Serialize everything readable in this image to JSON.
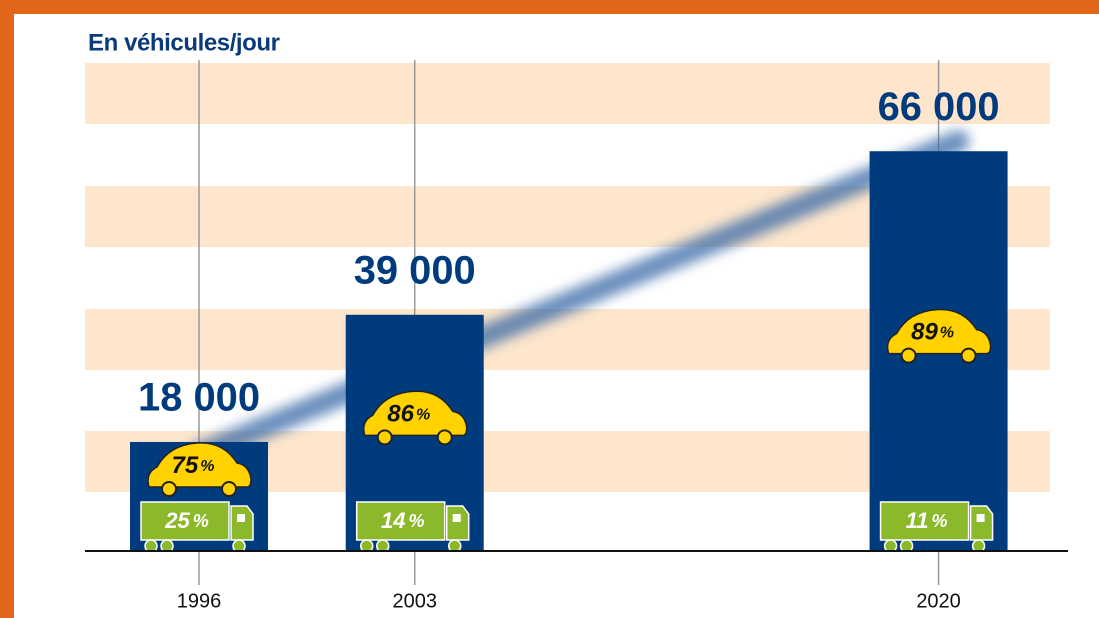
{
  "chart_data": {
    "type": "bar",
    "title": "En véhicules/jour",
    "x": [
      1996,
      2003,
      2020
    ],
    "values": [
      18000,
      39000,
      66000
    ],
    "value_labels": [
      "18 000",
      "39 000",
      "66 000"
    ],
    "color": "#003c7d",
    "xlim": [
      1992.3,
      2024.2
    ],
    "xticks": [
      1996,
      2003,
      2020
    ],
    "ylim": [
      0,
      70000
    ],
    "car_share": {
      "values": [
        75,
        86,
        89
      ],
      "unit": "%",
      "color": "#ffd200"
    },
    "truck_share": {
      "values": [
        25,
        14,
        11
      ],
      "unit": "%",
      "color": "#8cb82b"
    }
  }
}
